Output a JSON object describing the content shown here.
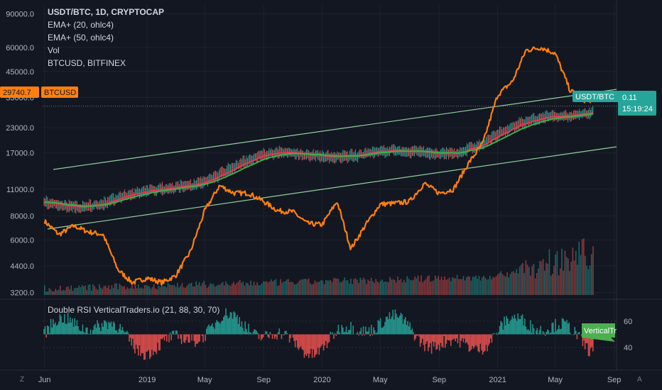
{
  "legend": {
    "title": "USDT/BTC, 1D, CRYPTOCAP",
    "ema20": "EMA+ (20, ohlc4)",
    "ema50": "EMA+ (50, ohlc4)",
    "vol": "Vol",
    "compare": "BTCUSD, BITFINEX"
  },
  "rsi_title": "Double RSI VerticalTraders.io (21, 88, 30, 70)",
  "price_labels": {
    "btc": {
      "value": "29740.7",
      "name": "BTCUSD"
    },
    "usdtbtc": {
      "name": "USDT/BTC",
      "value": "0.11",
      "time": "15:19:24"
    },
    "rsi_tag": "VerticalTr"
  },
  "corner": {
    "left": "Z",
    "right": "A"
  },
  "colors": {
    "background": "#131722",
    "btc_line": "#ff7f0e",
    "ema20": "#e8375a",
    "ema50": "#3fae4a",
    "channel": "#8fd29a",
    "candle_up": "#26a69a",
    "candle_down": "#ef5350",
    "tag_teal": "#26a69a",
    "tag_green": "#4caf50"
  },
  "chart_data": {
    "type": "line",
    "title": "USDT/BTC, 1D, CRYPTOCAP",
    "y_scale": "log",
    "y_ticks": [
      "90000.0",
      "60000.0",
      "45000.0",
      "33000.0",
      "23000.0",
      "17000.0",
      "11000.0",
      "8000.0",
      "6000.0",
      "4400.0",
      "3200.0"
    ],
    "y_tick_values": [
      90000,
      60000,
      45000,
      33000,
      23000,
      17000,
      11000,
      8000,
      6000,
      4400,
      3200
    ],
    "x_ticks": [
      "Jun",
      "2019",
      "May",
      "Sep",
      "2020",
      "May",
      "Sep",
      "2021",
      "May",
      "Sep"
    ],
    "x_tick_dates": [
      "2018-06-01",
      "2019-01-01",
      "2019-05-01",
      "2019-09-01",
      "2020-01-01",
      "2020-05-01",
      "2020-09-01",
      "2021-01-01",
      "2021-05-01",
      "2021-09-01"
    ],
    "rsi_ticks": [
      "60",
      "40"
    ],
    "rsi_tick_values": [
      60,
      40
    ],
    "series": [
      {
        "name": "BTCUSD, BITFINEX",
        "x": [
          "2018-06-01",
          "2018-07-01",
          "2018-08-01",
          "2018-09-01",
          "2018-10-01",
          "2018-11-01",
          "2018-12-01",
          "2019-01-01",
          "2019-02-01",
          "2019-03-01",
          "2019-04-01",
          "2019-05-01",
          "2019-06-01",
          "2019-07-01",
          "2019-08-01",
          "2019-09-01",
          "2019-10-01",
          "2019-11-01",
          "2019-12-01",
          "2020-01-01",
          "2020-02-01",
          "2020-03-01",
          "2020-04-01",
          "2020-05-01",
          "2020-06-01",
          "2020-07-01",
          "2020-08-01",
          "2020-09-01",
          "2020-10-01",
          "2020-11-01",
          "2020-12-01",
          "2021-01-01",
          "2021-02-01",
          "2021-03-01",
          "2021-04-01",
          "2021-05-01",
          "2021-06-01",
          "2021-07-01"
        ],
        "values": [
          7500,
          6400,
          7100,
          6600,
          6400,
          4200,
          3600,
          3800,
          3600,
          3900,
          5200,
          8500,
          11500,
          10500,
          10500,
          9500,
          8500,
          8400,
          7300,
          7200,
          9500,
          5400,
          7200,
          9200,
          9300,
          9500,
          11800,
          10500,
          11000,
          15000,
          19000,
          34000,
          40000,
          58000,
          60000,
          56000,
          36000,
          32000
        ]
      }
    ],
    "usdt_btc_value": "0.11"
  }
}
